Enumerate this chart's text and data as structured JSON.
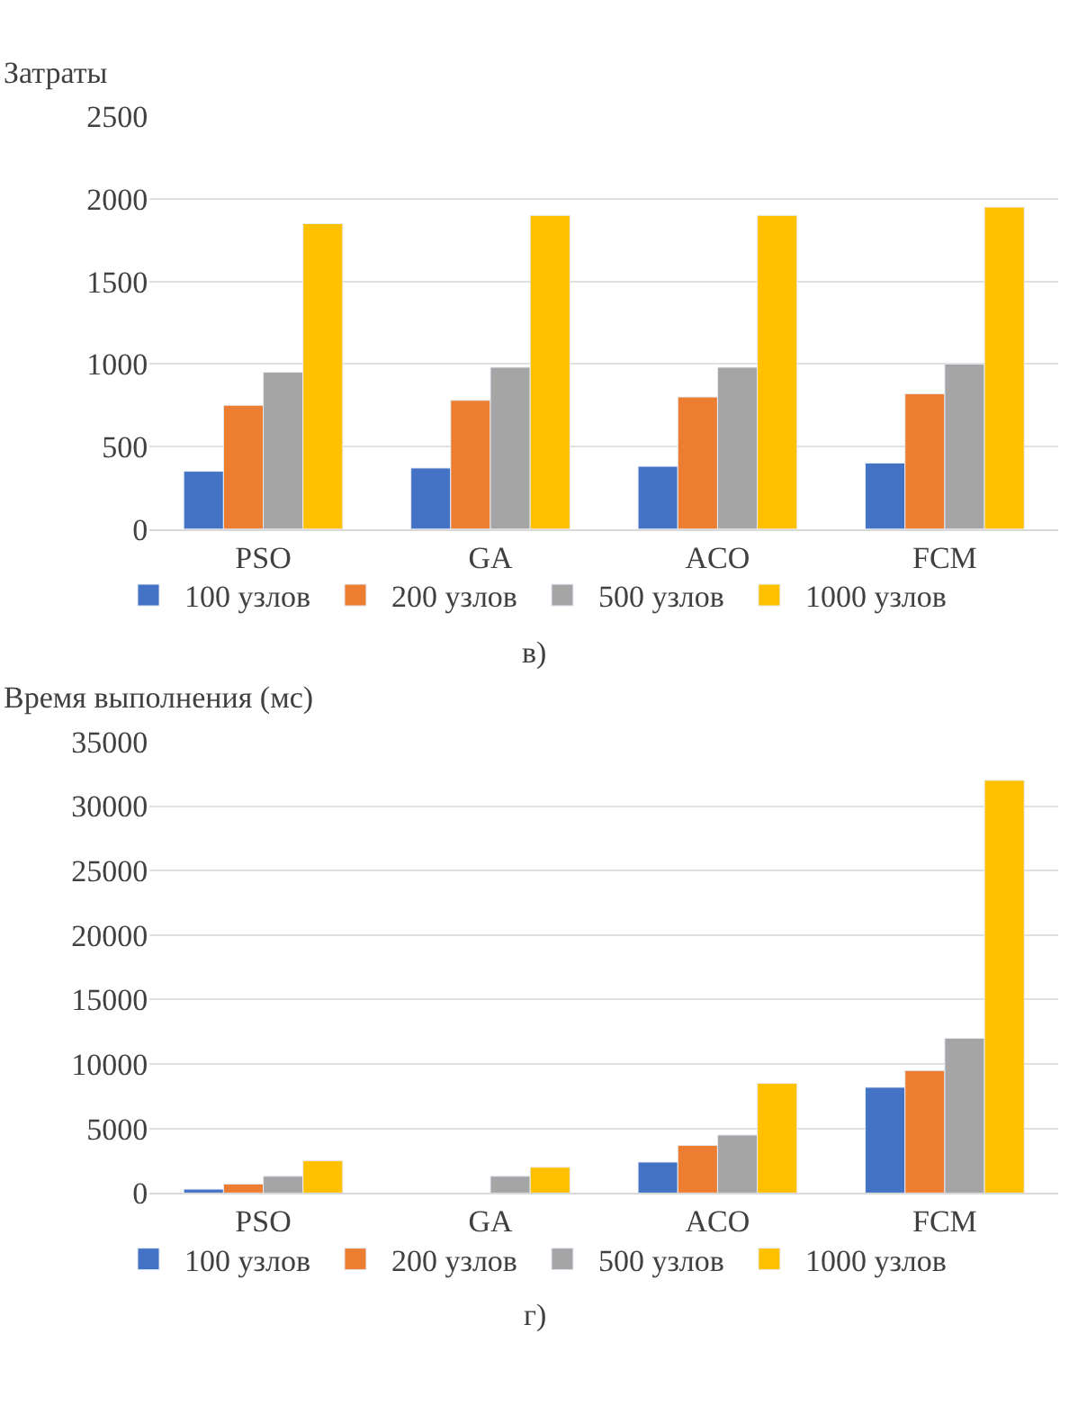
{
  "chart_data": [
    {
      "type": "bar",
      "ylabel": "Затраты",
      "categories": [
        "PSO",
        "GA",
        "ACO",
        "FCM"
      ],
      "series": [
        {
          "name": "100 узлов",
          "color": "#4472c4",
          "values": [
            350,
            370,
            380,
            400
          ]
        },
        {
          "name": "200 узлов",
          "color": "#ed7d31",
          "values": [
            750,
            780,
            800,
            820
          ]
        },
        {
          "name": "500 узлов",
          "color": "#a5a5a5",
          "values": [
            950,
            980,
            980,
            1000
          ]
        },
        {
          "name": "1000 узлов",
          "color": "#ffc000",
          "values": [
            1850,
            1900,
            1900,
            1950
          ]
        }
      ],
      "ylim": [
        0,
        2500
      ],
      "yticks": [
        0,
        500,
        1000,
        1500,
        2000,
        2500
      ],
      "grid": "y",
      "legend": "bottom",
      "annotations": [
        "в)"
      ]
    },
    {
      "type": "bar",
      "ylabel": "Время выполнения (мс)",
      "categories": [
        "PSO",
        "GA",
        "ACO",
        "FCM"
      ],
      "series": [
        {
          "name": "100 узлов",
          "color": "#4472c4",
          "values": [
            300,
            null,
            2400,
            8200
          ]
        },
        {
          "name": "200 узлов",
          "color": "#ed7d31",
          "values": [
            700,
            null,
            3700,
            9500
          ]
        },
        {
          "name": "500 узлов",
          "color": "#a5a5a5",
          "values": [
            1300,
            1300,
            4500,
            12000
          ]
        },
        {
          "name": "1000 узлов",
          "color": "#ffc000",
          "values": [
            2500,
            2000,
            8500,
            32000
          ]
        }
      ],
      "ylim": [
        0,
        35000
      ],
      "yticks": [
        0,
        5000,
        10000,
        15000,
        20000,
        25000,
        30000,
        35000
      ],
      "grid": "y",
      "legend": "bottom",
      "annotations": [
        "г)"
      ]
    }
  ]
}
